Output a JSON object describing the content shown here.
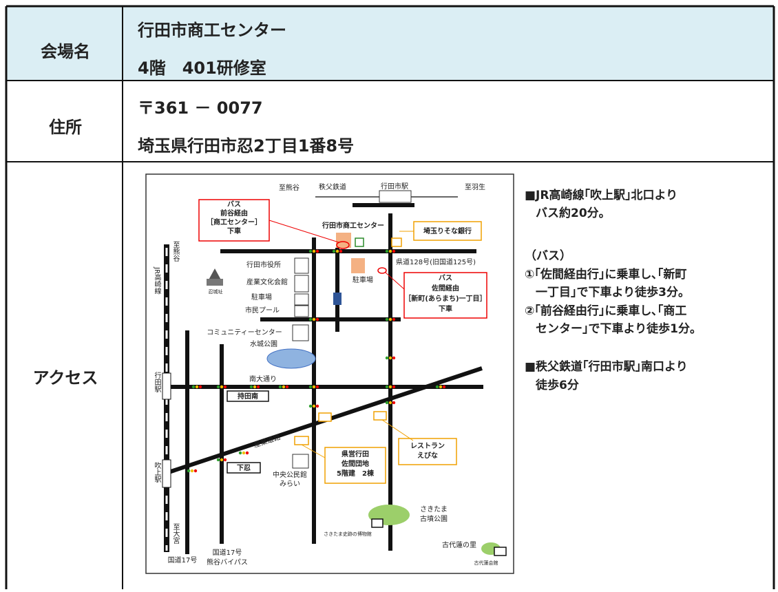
{
  "table": {
    "rows": [
      {
        "label": "会場名",
        "value": [
          "行田市商工センター",
          "4階　401研修室"
        ]
      },
      {
        "label": "住所",
        "value": [
          "〒361 － 0077",
          "埼玉県行田市忍2丁目1番8号"
        ]
      },
      {
        "label": "アクセス",
        "notes": [
          "■JR高崎線｢吹上駅｣北口より",
          "バス約20分。",
          "（バス）",
          "①｢佐間経由行｣に乗車し､｢新町",
          "一丁目｣で下車より徒歩3分。",
          "②｢前谷経由行｣に乗車し､｢商工",
          "センター｣で下車より徒歩1分。",
          "■秩父鉄道｢行田市駅｣南口より",
          "徒歩6分"
        ]
      }
    ]
  },
  "map": {
    "labels": [
      [
        "至熊谷"
      ],
      [
        "秩父鉄道"
      ],
      [
        "行田市駅"
      ],
      [
        "至羽生"
      ],
      [
        "バス",
        "前谷経由",
        "［商工センター］",
        "下車"
      ],
      [
        "行田市商工センター"
      ],
      [
        "埼玉りそな銀行"
      ],
      [
        "至熊谷"
      ],
      [
        "JR高崎線"
      ],
      [
        "行田市役所"
      ],
      [
        "産業文化会館"
      ],
      [
        "駐車場"
      ],
      [
        "市民プール"
      ],
      [
        "忍城址"
      ],
      [
        "県道128号(旧国道125号)"
      ],
      [
        "駐車場"
      ],
      [
        "バス",
        "佐間経由",
        "［新町(あらまち)一丁目］",
        "下車"
      ],
      [
        "コミュニティーセンター"
      ],
      [
        "水城公園"
      ],
      [
        "行田駅"
      ],
      [
        "南大通り"
      ],
      [
        "持田南"
      ],
      [
        "産業道路"
      ],
      [
        "県営行田",
        "佐間団地",
        "5階建　2棟"
      ],
      [
        "レストラン",
        "えびな"
      ],
      [
        "吹上駅"
      ],
      [
        "下忍"
      ],
      [
        "中央公民館",
        "みらい"
      ],
      [
        "さきたま",
        "古墳公園"
      ],
      [
        "さきたま史跡の博物館"
      ],
      [
        "古代蓮の里"
      ],
      [
        "至大宮"
      ],
      [
        "国道17号"
      ],
      [
        "国道17号",
        "熊谷バイパス"
      ],
      [
        "古代蓮会館"
      ]
    ]
  }
}
